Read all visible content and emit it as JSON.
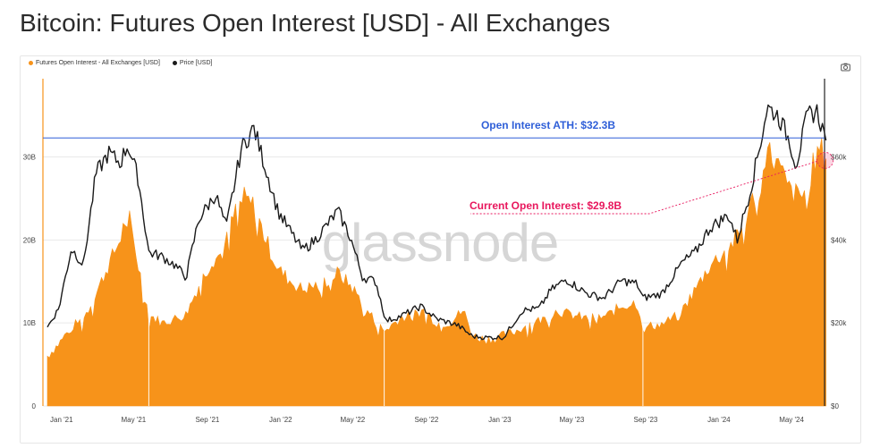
{
  "page": {
    "title": "Bitcoin: Futures Open Interest [USD] - All Exchanges"
  },
  "legend": [
    {
      "label": "Futures Open Interest - All Exchanges [USD]",
      "color": "#f7931a"
    },
    {
      "label": "Price [USD]",
      "color": "#1a1a1a"
    }
  ],
  "toolbar": {
    "camera_icon": "camera-icon"
  },
  "colors": {
    "oi": "#f7931a",
    "price": "#1a1a1a",
    "ath_line": "#2f5fd8",
    "current": "#e8175d"
  },
  "chart_data": {
    "type": "area",
    "x_range": [
      "2020-12-01",
      "2024-06-25"
    ],
    "x_ticks": [
      "Jan '21",
      "May '21",
      "Sep '21",
      "Jan '22",
      "May '22",
      "Sep '22",
      "Jan '23",
      "May '23",
      "Sep '23",
      "Jan '24",
      "May '24"
    ],
    "x_tick_dates": [
      "2021-01-01",
      "2021-05-01",
      "2021-09-01",
      "2022-01-01",
      "2022-05-01",
      "2022-09-01",
      "2023-01-01",
      "2023-05-01",
      "2023-09-01",
      "2024-01-01",
      "2024-05-01"
    ],
    "y_left": {
      "ticks": [
        "0",
        "10B",
        "20B",
        "30B"
      ],
      "values": [
        0,
        10,
        20,
        30
      ],
      "range": [
        0,
        39
      ],
      "unit": "B USD"
    },
    "y_right": {
      "ticks": [
        "$0",
        "$20k",
        "$40k",
        "$60k"
      ],
      "values": [
        0,
        20000,
        40000,
        60000
      ],
      "range": [
        0,
        78000
      ]
    },
    "grid": "horizontal",
    "series": [
      {
        "name": "Futures Open Interest - All Exchanges [USD]",
        "axis": "left",
        "dates": [
          "2020-12-01",
          "2020-12-20",
          "2021-01-10",
          "2021-01-30",
          "2021-02-20",
          "2021-03-10",
          "2021-04-01",
          "2021-04-14",
          "2021-05-01",
          "2021-05-19",
          "2021-06-10",
          "2021-07-01",
          "2021-07-20",
          "2021-08-10",
          "2021-09-01",
          "2021-09-20",
          "2021-10-10",
          "2021-10-25",
          "2021-11-10",
          "2021-11-30",
          "2021-12-20",
          "2022-01-10",
          "2022-01-30",
          "2022-02-20",
          "2022-03-10",
          "2022-03-30",
          "2022-04-20",
          "2022-05-10",
          "2022-06-01",
          "2022-06-15",
          "2022-07-10",
          "2022-08-01",
          "2022-08-20",
          "2022-09-10",
          "2022-10-01",
          "2022-10-25",
          "2022-11-09",
          "2022-11-30",
          "2022-12-20",
          "2023-01-20",
          "2023-02-15",
          "2023-03-10",
          "2023-03-30",
          "2023-04-20",
          "2023-05-20",
          "2023-06-20",
          "2023-07-15",
          "2023-08-10",
          "2023-08-20",
          "2023-09-20",
          "2023-10-20",
          "2023-11-15",
          "2023-12-10",
          "2024-01-10",
          "2024-01-30",
          "2024-02-20",
          "2024-03-13",
          "2024-04-01",
          "2024-04-20",
          "2024-05-10",
          "2024-05-30",
          "2024-06-10",
          "2024-06-20"
        ],
        "values": [
          6.0,
          7.5,
          9.5,
          10.5,
          13.5,
          16.5,
          20.0,
          23.5,
          17.0,
          11.0,
          10.0,
          10.5,
          11.0,
          14.5,
          17.5,
          18.5,
          23.5,
          25.0,
          24.0,
          20.0,
          16.5,
          15.0,
          14.0,
          14.5,
          15.0,
          16.0,
          14.5,
          12.5,
          10.0,
          9.0,
          10.5,
          11.0,
          11.5,
          10.0,
          10.0,
          11.5,
          8.5,
          8.0,
          8.2,
          9.0,
          10.0,
          10.5,
          11.5,
          11.0,
          10.5,
          10.8,
          12.0,
          12.5,
          9.5,
          9.8,
          11.0,
          14.0,
          17.0,
          19.0,
          21.0,
          25.0,
          31.0,
          29.0,
          26.0,
          25.0,
          29.0,
          31.0,
          29.8
        ]
      },
      {
        "name": "Price [USD]",
        "axis": "right",
        "dates": [
          "2020-12-01",
          "2020-12-20",
          "2021-01-10",
          "2021-01-30",
          "2021-02-20",
          "2021-03-13",
          "2021-04-01",
          "2021-04-14",
          "2021-05-01",
          "2021-05-19",
          "2021-06-10",
          "2021-07-01",
          "2021-07-20",
          "2021-08-10",
          "2021-09-07",
          "2021-09-25",
          "2021-10-20",
          "2021-11-10",
          "2021-11-30",
          "2021-12-20",
          "2022-01-10",
          "2022-01-30",
          "2022-02-20",
          "2022-03-30",
          "2022-04-20",
          "2022-05-10",
          "2022-06-01",
          "2022-06-18",
          "2022-07-10",
          "2022-08-15",
          "2022-09-10",
          "2022-10-15",
          "2022-11-09",
          "2022-11-30",
          "2022-12-31",
          "2023-01-31",
          "2023-02-28",
          "2023-03-20",
          "2023-04-14",
          "2023-05-20",
          "2023-06-15",
          "2023-07-15",
          "2023-08-10",
          "2023-08-20",
          "2023-09-20",
          "2023-10-24",
          "2023-11-15",
          "2023-12-10",
          "2024-01-10",
          "2024-01-24",
          "2024-02-15",
          "2024-03-05",
          "2024-03-14",
          "2024-04-01",
          "2024-04-20",
          "2024-05-01",
          "2024-05-20",
          "2024-06-05",
          "2024-06-20"
        ],
        "values": [
          19000,
          23500,
          38000,
          34000,
          56000,
          61000,
          58500,
          63000,
          55000,
          37000,
          36000,
          34000,
          31000,
          45000,
          51000,
          43000,
          62000,
          67000,
          57000,
          47000,
          42000,
          37500,
          40000,
          47000,
          40500,
          31000,
          30000,
          20500,
          21500,
          24000,
          21000,
          19500,
          16800,
          16500,
          16550,
          23000,
          23500,
          28000,
          30500,
          27000,
          26000,
          30200,
          29500,
          26000,
          27000,
          34500,
          37000,
          43000,
          46000,
          40000,
          52000,
          65000,
          72000,
          70000,
          64000,
          58000,
          70000,
          71000,
          64000
        ]
      }
    ],
    "annotations": [
      {
        "type": "hline",
        "axis": "left",
        "value": 32.3,
        "label": "Open Interest ATH: $32.3B"
      },
      {
        "type": "callout",
        "axis": "left",
        "date": "2024-06-20",
        "value": 29.8,
        "label": "Current Open Interest: $29.8B"
      }
    ],
    "watermark": "glassnode"
  }
}
